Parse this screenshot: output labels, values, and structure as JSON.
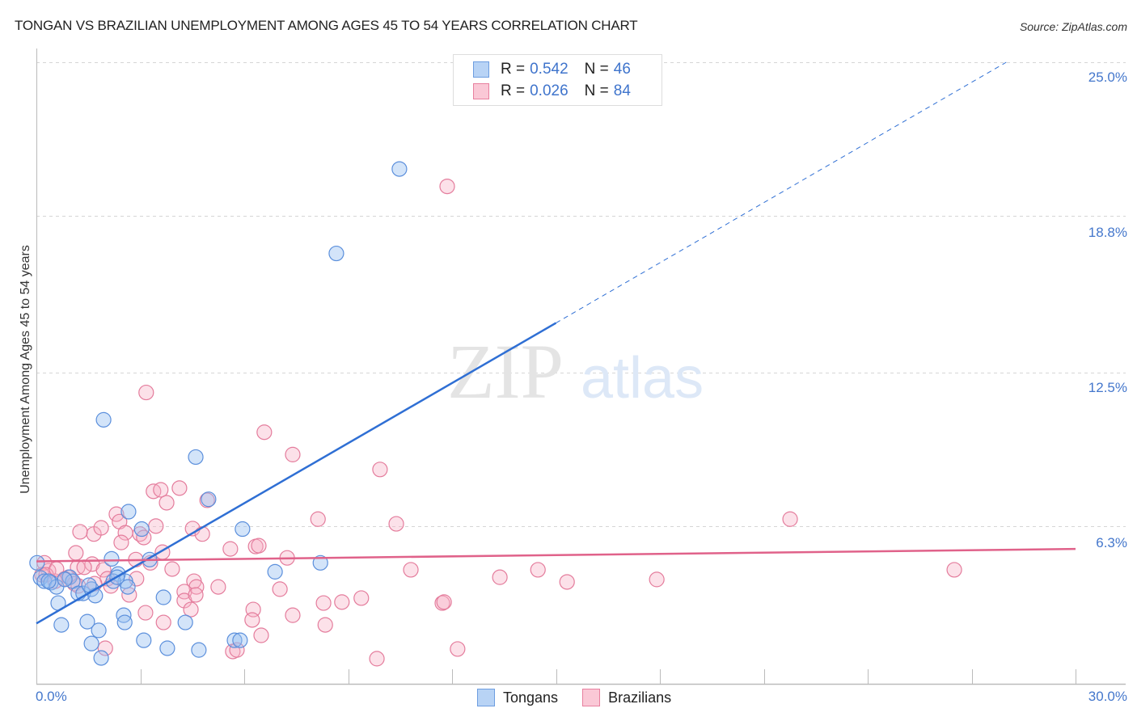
{
  "header": {
    "title": "TONGAN VS BRAZILIAN UNEMPLOYMENT AMONG AGES 45 TO 54 YEARS CORRELATION CHART",
    "source": "Source: ZipAtlas.com"
  },
  "legend": {
    "rows": [
      {
        "series": "Tongans",
        "r_label": "R =",
        "r_value": "0.542",
        "n_label": "N =",
        "n_value": "46",
        "color": "#a9c8f0",
        "border": "#6d9de0"
      },
      {
        "series": "Brazilians",
        "r_label": "R =",
        "r_value": "0.026",
        "n_label": "N =",
        "n_value": "84",
        "color": "#f8bfd0",
        "border": "#e8809f"
      }
    ],
    "bottom": [
      {
        "label": "Tongans",
        "color": "#b8d3f5",
        "border": "#6d9de0"
      },
      {
        "label": "Brazilians",
        "color": "#fac8d6",
        "border": "#e8809f"
      }
    ]
  },
  "axes": {
    "ylabel": "Unemployment Among Ages 45 to 54 years",
    "yticks": [
      "25.0%",
      "18.8%",
      "12.5%",
      "6.3%"
    ],
    "xticks": [
      "0.0%",
      "30.0%"
    ]
  },
  "watermark": {
    "zip": "ZIP",
    "atlas": "atlas"
  },
  "colors": {
    "tongan_line": "#2f6fd4",
    "brazilian_line": "#e0628a",
    "tongan_fill": "rgba(150,190,240,0.42)",
    "tongan_stroke": "#5b8fdc",
    "brazilian_fill": "rgba(248,175,198,0.38)",
    "brazilian_stroke": "#e47c9c",
    "tick_label": "#4477cc",
    "grid": "#cccccc"
  },
  "chart_data": {
    "type": "scatter",
    "title": "TONGAN VS BRAZILIAN UNEMPLOYMENT AMONG AGES 45 TO 54 YEARS CORRELATION CHART",
    "xlabel": "",
    "ylabel": "Unemployment Among Ages 45 to 54 years",
    "xlim": [
      0,
      30
    ],
    "ylim": [
      0,
      25
    ],
    "ytick_values": [
      6.3,
      12.5,
      18.8,
      25.0
    ],
    "xtick_labels": [
      "0.0%",
      "30.0%"
    ],
    "grid": true,
    "legend_position": "top-center and bottom",
    "series": [
      {
        "name": "Tongans",
        "R": 0.542,
        "N": 46,
        "trend": {
          "x0": 0,
          "y0": 2.4,
          "x1": 15.0,
          "y1": 14.5,
          "dashed_extension_to": [
            28.0,
            25.0
          ]
        },
        "points": [
          [
            1.94,
            10.6
          ],
          [
            4.6,
            9.1
          ],
          [
            2.66,
            6.9
          ],
          [
            3.04,
            6.2
          ],
          [
            5.95,
            6.2
          ],
          [
            4.97,
            7.4
          ],
          [
            2.17,
            5.0
          ],
          [
            3.27,
            4.97
          ],
          [
            8.2,
            4.84
          ],
          [
            6.89,
            4.48
          ],
          [
            0.02,
            4.84
          ],
          [
            0.12,
            4.23
          ],
          [
            0.23,
            4.1
          ],
          [
            0.42,
            4.04
          ],
          [
            0.58,
            3.87
          ],
          [
            0.96,
            4.26
          ],
          [
            1.05,
            4.1
          ],
          [
            1.21,
            3.61
          ],
          [
            1.35,
            3.61
          ],
          [
            1.59,
            3.78
          ],
          [
            1.7,
            3.52
          ],
          [
            1.52,
            3.94
          ],
          [
            2.36,
            4.39
          ],
          [
            2.57,
            4.1
          ],
          [
            2.64,
            3.87
          ],
          [
            3.67,
            3.45
          ],
          [
            0.63,
            3.22
          ],
          [
            0.72,
            2.34
          ],
          [
            1.47,
            2.47
          ],
          [
            1.8,
            2.12
          ],
          [
            2.52,
            2.73
          ],
          [
            2.55,
            2.44
          ],
          [
            4.3,
            2.44
          ],
          [
            3.1,
            1.72
          ],
          [
            3.78,
            1.4
          ],
          [
            4.69,
            1.33
          ],
          [
            1.59,
            1.59
          ],
          [
            1.87,
            1.01
          ],
          [
            5.72,
            1.72
          ],
          [
            5.88,
            1.72
          ],
          [
            8.66,
            17.3
          ],
          [
            10.48,
            20.7
          ],
          [
            0.35,
            4.1
          ],
          [
            0.82,
            4.17
          ],
          [
            2.22,
            4.1
          ],
          [
            2.33,
            4.26
          ]
        ]
      },
      {
        "name": "Brazilians",
        "R": 0.026,
        "N": 84,
        "trend": {
          "x0": 0,
          "y0": 4.9,
          "x1": 30.0,
          "y1": 5.4
        },
        "points": [
          [
            3.17,
            11.7
          ],
          [
            6.58,
            10.1
          ],
          [
            7.4,
            9.2
          ],
          [
            9.92,
            8.6
          ],
          [
            21.76,
            6.6
          ],
          [
            1.66,
            6.0
          ],
          [
            1.87,
            6.25
          ],
          [
            2.31,
            6.8
          ],
          [
            2.4,
            6.5
          ],
          [
            2.57,
            6.05
          ],
          [
            2.99,
            6.0
          ],
          [
            3.1,
            5.86
          ],
          [
            3.45,
            6.32
          ],
          [
            3.38,
            7.72
          ],
          [
            3.59,
            7.78
          ],
          [
            3.76,
            7.26
          ],
          [
            4.13,
            7.85
          ],
          [
            4.51,
            6.22
          ],
          [
            4.79,
            6.0
          ],
          [
            4.93,
            7.36
          ],
          [
            8.13,
            6.6
          ],
          [
            10.39,
            6.41
          ],
          [
            5.6,
            5.4
          ],
          [
            6.33,
            5.5
          ],
          [
            6.42,
            5.53
          ],
          [
            7.24,
            5.04
          ],
          [
            3.29,
            4.84
          ],
          [
            3.64,
            5.27
          ],
          [
            3.92,
            4.59
          ],
          [
            4.55,
            4.1
          ],
          [
            4.62,
            3.87
          ],
          [
            5.25,
            3.87
          ],
          [
            4.27,
            3.68
          ],
          [
            4.27,
            3.32
          ],
          [
            4.46,
            2.96
          ],
          [
            7.03,
            3.78
          ],
          [
            6.26,
            2.96
          ],
          [
            6.23,
            2.54
          ],
          [
            7.4,
            2.73
          ],
          [
            6.49,
            1.92
          ],
          [
            5.67,
            1.27
          ],
          [
            5.79,
            1.33
          ],
          [
            8.29,
            3.22
          ],
          [
            8.82,
            3.26
          ],
          [
            9.38,
            3.42
          ],
          [
            8.34,
            2.34
          ],
          [
            11.72,
            3.22
          ],
          [
            11.77,
            3.26
          ],
          [
            10.81,
            4.56
          ],
          [
            13.38,
            4.26
          ],
          [
            14.48,
            4.56
          ],
          [
            15.32,
            4.07
          ],
          [
            17.91,
            4.17
          ],
          [
            26.5,
            4.56
          ],
          [
            1.99,
            1.4
          ],
          [
            9.83,
            0.98
          ],
          [
            12.16,
            1.37
          ],
          [
            2.45,
            5.66
          ],
          [
            1.14,
            5.24
          ],
          [
            1.26,
            6.09
          ],
          [
            1.61,
            4.79
          ],
          [
            1.94,
            4.56
          ],
          [
            2.05,
            4.2
          ],
          [
            2.15,
            3.91
          ],
          [
            1.68,
            4.0
          ],
          [
            1.19,
            4.66
          ],
          [
            1.38,
            4.66
          ],
          [
            0.93,
            4.26
          ],
          [
            0.82,
            4.2
          ],
          [
            0.35,
            4.52
          ],
          [
            0.23,
            4.84
          ],
          [
            0.16,
            4.36
          ],
          [
            0.28,
            4.36
          ],
          [
            0.54,
            4.1
          ],
          [
            0.58,
            4.59
          ],
          [
            1.1,
            4.0
          ],
          [
            1.21,
            3.91
          ],
          [
            2.68,
            3.55
          ],
          [
            2.89,
            4.2
          ],
          [
            3.15,
            2.83
          ],
          [
            3.67,
            2.44
          ],
          [
            4.6,
            3.55
          ],
          [
            2.87,
            4.97
          ],
          [
            11.86,
            20.0
          ]
        ]
      }
    ]
  }
}
